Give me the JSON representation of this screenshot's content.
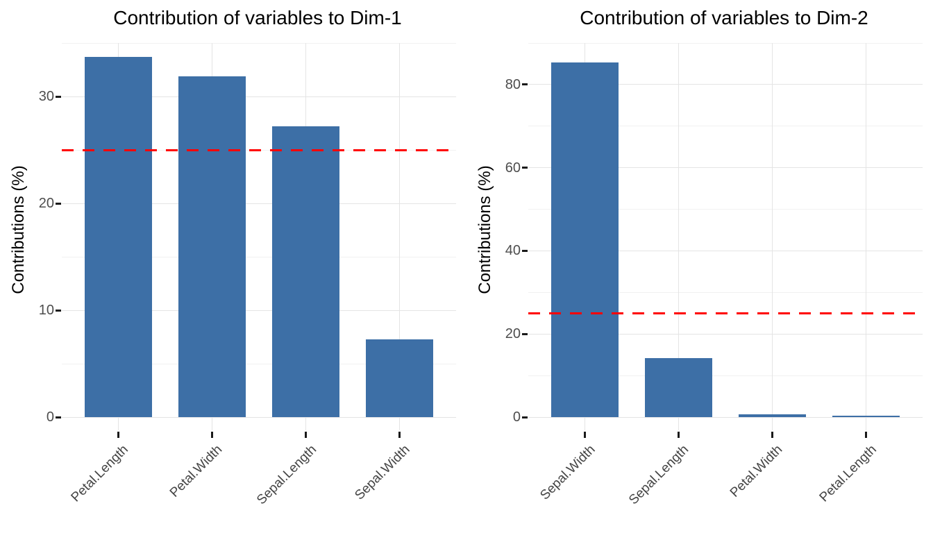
{
  "page": {
    "background": "#FFFFFF"
  },
  "colors": {
    "bar": "#3D6FA6",
    "reference_line": "#FF0000",
    "grid_major": "#E4E4E4",
    "grid_minor": "#F1F1F1",
    "axis_tick": "#1A1A1A",
    "y_tick_text": "#4D4D4D",
    "x_tick_text": "#444444",
    "title_text": "#000000"
  },
  "chart_data": [
    {
      "type": "bar",
      "title": "Contribution of variables to Dim-1",
      "ylabel": "Contributions (%)",
      "xlabel": "",
      "categories": [
        "Petal.Length",
        "Petal.Width",
        "Sepal.Length",
        "Sepal.Width"
      ],
      "values": [
        33.7,
        31.9,
        27.2,
        7.3
      ],
      "ylim": [
        0,
        35
      ],
      "yticks": [
        0,
        10,
        20,
        30
      ],
      "yticks_minor": [
        5,
        15,
        25,
        35
      ],
      "ref_line": {
        "y": 25,
        "style": "dashed",
        "color": "#FF0000"
      },
      "bar_color": "#3D6FA6",
      "grid": true,
      "legend": "none"
    },
    {
      "type": "bar",
      "title": "Contribution of variables to Dim-2",
      "ylabel": "Contributions (%)",
      "xlabel": "",
      "categories": [
        "Sepal.Width",
        "Sepal.Length",
        "Petal.Width",
        "Petal.Length"
      ],
      "values": [
        85.3,
        14.2,
        0.7,
        0.3
      ],
      "ylim": [
        0,
        90
      ],
      "yticks": [
        0,
        20,
        40,
        60,
        80
      ],
      "yticks_minor": [
        10,
        30,
        50,
        70,
        90
      ],
      "ref_line": {
        "y": 25,
        "style": "dashed",
        "color": "#FF0000"
      },
      "bar_color": "#3D6FA6",
      "grid": true,
      "legend": "none"
    }
  ]
}
